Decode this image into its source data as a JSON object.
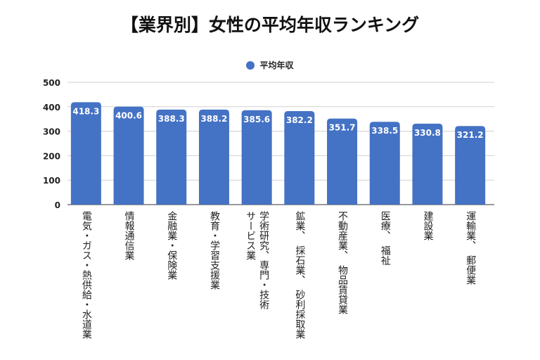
{
  "chart_data": {
    "type": "bar",
    "title": "【業界別】女性の平均年収ランキング",
    "legend": {
      "position": "top",
      "entries": [
        "平均年収"
      ]
    },
    "categories": [
      "電気・ガス・熱供給・水道業",
      "情報通信業",
      "金融業・保険業",
      "教育・学習支援業",
      "学術研究、専門・技術\nサービス業",
      "鉱業、　採石業、　砂利採取業",
      "不動産業、　物品賃貸業",
      "医療、　福祉",
      "建設業",
      "運輸業、　郵便業"
    ],
    "series": [
      {
        "name": "平均年収",
        "color": "#4472C4",
        "values": [
          418.3,
          400.6,
          388.3,
          388.2,
          385.6,
          382.2,
          351.7,
          338.5,
          330.8,
          321.2
        ]
      }
    ],
    "data_labels": [
      "418.3",
      "400.6",
      "388.3",
      "388.2",
      "385.6",
      "382.2",
      "351.7",
      "338.5",
      "330.8",
      "321.2"
    ],
    "yticks": [
      "0",
      "100",
      "200",
      "300",
      "400",
      "500"
    ],
    "ylim": [
      0,
      500
    ],
    "grid": true,
    "xlabel": "",
    "ylabel": ""
  }
}
